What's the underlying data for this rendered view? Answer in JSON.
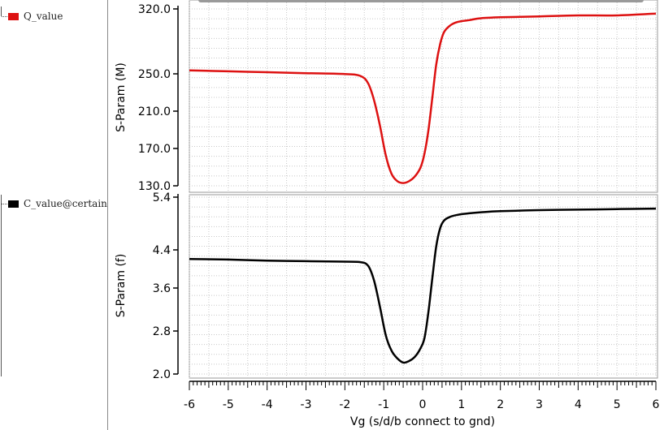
{
  "legend": {
    "items": [
      {
        "label": "Q_value",
        "color": "#dd1111"
      },
      {
        "label": "C_value@certain",
        "color": "#000000"
      }
    ]
  },
  "chart_data": [
    {
      "type": "line",
      "ylabel": "S-Param (M)",
      "xlim": [
        -6,
        6
      ],
      "ylim": [
        130,
        320
      ],
      "yticks": [
        "320.0",
        "250.0",
        "210.0",
        "170.0",
        "130.0"
      ],
      "yticks_values": [
        320,
        250,
        210,
        170,
        130
      ],
      "grid": true,
      "series": [
        {
          "name": "Q_value",
          "color": "#dd1111",
          "x": [
            -6,
            -5,
            -4,
            -3,
            -2,
            -1.6,
            -1.4,
            -1.25,
            -1.1,
            -0.95,
            -0.8,
            -0.65,
            -0.5,
            -0.35,
            -0.2,
            -0.05,
            0.05,
            0.15,
            0.25,
            0.35,
            0.45,
            0.55,
            0.7,
            0.9,
            1.2,
            1.5,
            2,
            3,
            4,
            5,
            6
          ],
          "y": [
            254,
            253,
            252,
            251,
            250,
            248,
            240,
            222,
            195,
            163,
            143,
            135,
            133,
            135,
            140,
            150,
            165,
            190,
            225,
            260,
            282,
            295,
            302,
            306,
            308,
            310,
            311,
            312,
            313,
            313,
            315
          ]
        }
      ]
    },
    {
      "type": "line",
      "ylabel": "S-Param (f)",
      "xlabel": "Vg (s/d/b connect to gnd)",
      "xlim": [
        -6,
        6
      ],
      "ylim": [
        2.0,
        5.4
      ],
      "yticks": [
        "5.4",
        "4.4",
        "3.6",
        "2.8",
        "2.0"
      ],
      "yticks_values": [
        5.4,
        4.4,
        3.6,
        2.8,
        2.0
      ],
      "xticks": [
        "-6",
        "-5",
        "-4",
        "-3",
        "-2",
        "-1",
        "0",
        "1",
        "2",
        "3",
        "4",
        "5",
        "6"
      ],
      "grid": true,
      "series": [
        {
          "name": "C_value@certain",
          "color": "#000000",
          "x": [
            -6,
            -5,
            -4,
            -3,
            -2,
            -1.6,
            -1.4,
            -1.25,
            -1.1,
            -0.95,
            -0.8,
            -0.65,
            -0.5,
            -0.35,
            -0.2,
            -0.05,
            0.05,
            0.15,
            0.25,
            0.35,
            0.45,
            0.55,
            0.7,
            0.9,
            1.2,
            1.5,
            2,
            3,
            4,
            5,
            6
          ],
          "y": [
            4.21,
            4.2,
            4.18,
            4.17,
            4.16,
            4.15,
            4.08,
            3.8,
            3.3,
            2.75,
            2.45,
            2.3,
            2.22,
            2.25,
            2.33,
            2.5,
            2.7,
            3.2,
            3.85,
            4.45,
            4.8,
            4.95,
            5.02,
            5.06,
            5.09,
            5.11,
            5.13,
            5.15,
            5.16,
            5.17,
            5.18
          ]
        }
      ]
    }
  ]
}
